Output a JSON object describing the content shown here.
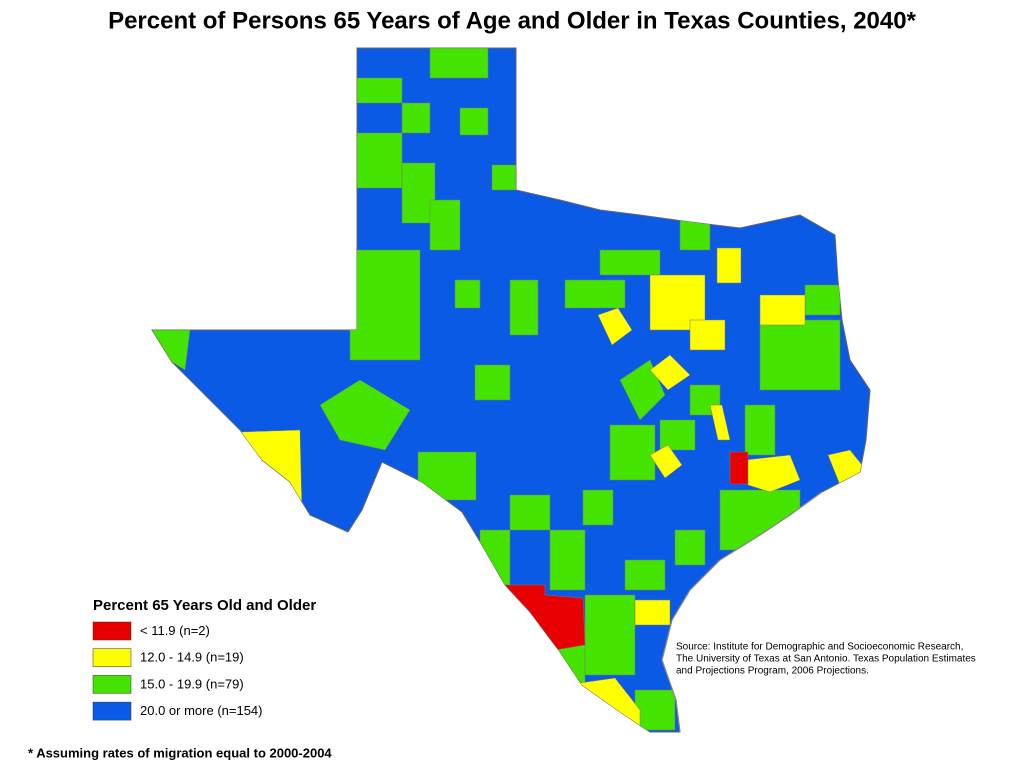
{
  "title": "Percent of Persons 65 Years of Age and Older in Texas Counties, 2040*",
  "legend": {
    "title": "Percent 65 Years Old and Older",
    "items": [
      {
        "label": "< 11.9 (n=2)",
        "color": "#e80000"
      },
      {
        "label": "12.0 - 14.9 (n=19)",
        "color": "#ffff00"
      },
      {
        "label": "15.0 - 19.9 (n=79)",
        "color": "#44e400"
      },
      {
        "label": "20.0 or more (n=154)",
        "color": "#0a5ae6"
      }
    ]
  },
  "source": {
    "lines": [
      "Source: Institute for Demographic and Socioeconomic Research,",
      "The University of Texas at San Antonio. Texas Population Estimates",
      "and Projections Program, 2006 Projections."
    ]
  },
  "footnote": "* Assuming rates of migration equal to 2000-2004"
}
